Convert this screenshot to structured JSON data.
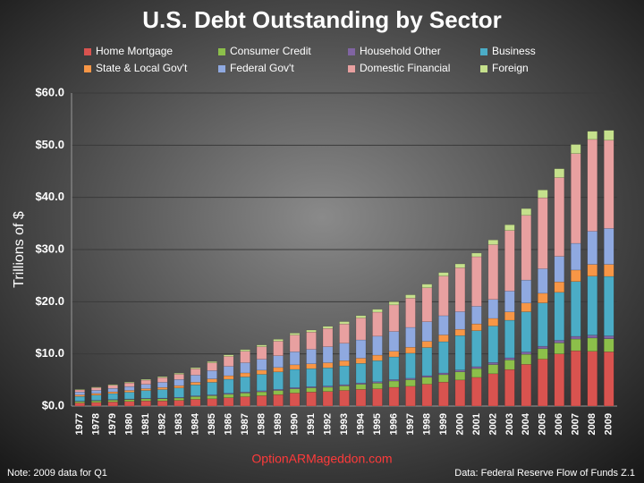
{
  "chart_data": {
    "type": "stacked-bar",
    "title": "U.S. Debt Outstanding by Sector",
    "y_label": "Trillions  of  $",
    "note": "Note: 2009 data for Q1",
    "website": "OptionARMageddon.com",
    "source": "Data: Federal Reserve Flow of Funds Z.1",
    "categories": [
      "1977",
      "1978",
      "1979",
      "1980",
      "1981",
      "1982",
      "1983",
      "1984",
      "1985",
      "1986",
      "1987",
      "1988",
      "1989",
      "1990",
      "1991",
      "1992",
      "1993",
      "1994",
      "1995",
      "1996",
      "1997",
      "1998",
      "1999",
      "2000",
      "2001",
      "2002",
      "2003",
      "2004",
      "2005",
      "2006",
      "2007",
      "2008",
      "2009"
    ],
    "ylim": [
      0,
      60
    ],
    "yticks": [
      {
        "value": 0,
        "label": "$0.0"
      },
      {
        "value": 10,
        "label": "$10.0"
      },
      {
        "value": 20,
        "label": "$20.0"
      },
      {
        "value": 30,
        "label": "$30.0"
      },
      {
        "value": 40,
        "label": "$40.0"
      },
      {
        "value": 50,
        "label": "$50.0"
      },
      {
        "value": 60,
        "label": "$60.0"
      }
    ],
    "grid": true,
    "series": [
      {
        "name": "Home Mortgage",
        "color": "#d9534f",
        "values": [
          0.6,
          0.7,
          0.8,
          0.9,
          1.0,
          1.0,
          1.1,
          1.3,
          1.4,
          1.6,
          1.8,
          2.0,
          2.2,
          2.5,
          2.7,
          2.8,
          3.0,
          3.2,
          3.3,
          3.6,
          3.8,
          4.2,
          4.6,
          5.0,
          5.5,
          6.2,
          7.0,
          8.0,
          9.0,
          10.0,
          10.6,
          10.5,
          10.4
        ]
      },
      {
        "name": "Consumer Credit",
        "color": "#8cbf4a",
        "values": [
          0.27,
          0.31,
          0.35,
          0.36,
          0.38,
          0.4,
          0.44,
          0.53,
          0.6,
          0.66,
          0.7,
          0.73,
          0.79,
          0.81,
          0.8,
          0.8,
          0.86,
          0.98,
          1.1,
          1.2,
          1.25,
          1.32,
          1.42,
          1.56,
          1.68,
          1.75,
          1.83,
          1.92,
          2.0,
          2.1,
          2.25,
          2.55,
          2.5
        ]
      },
      {
        "name": "Household Other",
        "color": "#8064a2",
        "values": [
          0.08,
          0.09,
          0.1,
          0.1,
          0.11,
          0.12,
          0.13,
          0.14,
          0.16,
          0.18,
          0.19,
          0.2,
          0.21,
          0.22,
          0.22,
          0.23,
          0.24,
          0.25,
          0.26,
          0.27,
          0.28,
          0.3,
          0.32,
          0.35,
          0.37,
          0.4,
          0.42,
          0.45,
          0.47,
          0.5,
          0.52,
          0.55,
          0.55
        ]
      },
      {
        "name": "Business",
        "color": "#4bacc6",
        "values": [
          0.9,
          1.0,
          1.15,
          1.3,
          1.5,
          1.65,
          1.8,
          2.1,
          2.4,
          2.7,
          2.9,
          3.15,
          3.35,
          3.5,
          3.45,
          3.5,
          3.6,
          3.75,
          4.05,
          4.35,
          4.8,
          5.4,
          6.0,
          6.6,
          6.9,
          7.0,
          7.2,
          7.7,
          8.3,
          9.2,
          10.5,
          11.3,
          11.4
        ]
      },
      {
        "name": "State & Local Gov't",
        "color": "#f79646",
        "values": [
          0.3,
          0.32,
          0.33,
          0.34,
          0.35,
          0.4,
          0.45,
          0.5,
          0.65,
          0.68,
          0.76,
          0.8,
          0.85,
          0.88,
          0.93,
          0.97,
          1.0,
          1.0,
          1.05,
          1.1,
          1.15,
          1.2,
          1.3,
          1.2,
          1.3,
          1.45,
          1.6,
          1.68,
          1.85,
          2.0,
          2.2,
          2.25,
          2.3
        ]
      },
      {
        "name": "Federal Gov't",
        "color": "#8fa9e0",
        "values": [
          0.55,
          0.6,
          0.66,
          0.74,
          0.83,
          0.99,
          1.18,
          1.37,
          1.59,
          1.8,
          1.96,
          2.1,
          2.25,
          2.5,
          2.78,
          3.08,
          3.34,
          3.5,
          3.64,
          3.78,
          3.8,
          3.75,
          3.68,
          3.39,
          3.38,
          3.64,
          4.0,
          4.4,
          4.7,
          4.89,
          5.12,
          6.36,
          6.9
        ]
      },
      {
        "name": "Domestic Financial",
        "color": "#e8a0a0",
        "values": [
          0.4,
          0.5,
          0.6,
          0.7,
          0.8,
          0.9,
          1.0,
          1.2,
          1.5,
          1.9,
          2.2,
          2.4,
          2.8,
          3.2,
          3.3,
          3.5,
          3.7,
          4.2,
          4.6,
          5.1,
          5.6,
          6.5,
          7.6,
          8.4,
          9.5,
          10.5,
          11.6,
          12.4,
          13.6,
          15.1,
          17.2,
          17.6,
          16.9
        ]
      },
      {
        "name": "Foreign",
        "color": "#c5e08c",
        "values": [
          0.1,
          0.12,
          0.14,
          0.15,
          0.16,
          0.18,
          0.2,
          0.22,
          0.24,
          0.3,
          0.31,
          0.33,
          0.35,
          0.37,
          0.39,
          0.4,
          0.45,
          0.45,
          0.55,
          0.6,
          0.65,
          0.7,
          0.68,
          0.75,
          0.7,
          0.9,
          1.1,
          1.3,
          1.5,
          1.7,
          1.75,
          1.55,
          1.9
        ]
      }
    ]
  }
}
